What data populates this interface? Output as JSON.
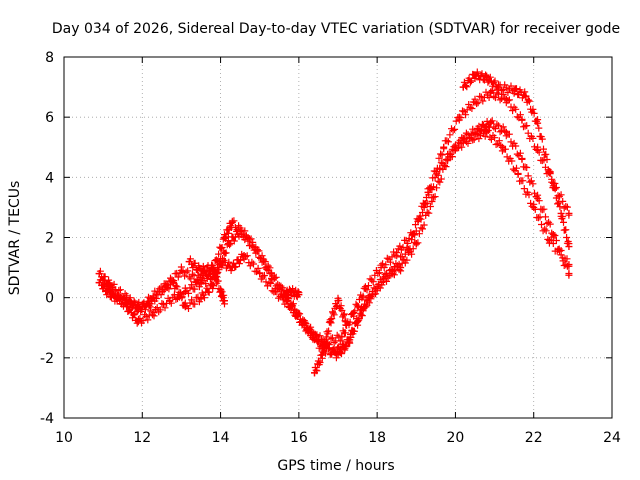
{
  "chart_data": {
    "type": "scatter",
    "title": "Day 034 of 2026, Sidereal Day-to-day VTEC variation (SDTVAR) for receiver gode",
    "xlabel": "GPS time / hours",
    "ylabel": "SDTVAR / TECUs",
    "xlim": [
      10,
      24
    ],
    "ylim": [
      -4,
      8
    ],
    "x_ticks": [
      10,
      12,
      14,
      16,
      18,
      20,
      22,
      24
    ],
    "y_ticks": [
      -4,
      -2,
      0,
      2,
      4,
      6,
      8
    ],
    "grid": true,
    "marker": "+",
    "color": "#ff0000",
    "series": [
      {
        "name": "trace-1",
        "points": [
          [
            10.9,
            0.8
          ],
          [
            11.2,
            0.4
          ],
          [
            11.6,
            0.0
          ],
          [
            11.9,
            -0.4
          ],
          [
            12.2,
            -0.2
          ],
          [
            12.6,
            0.4
          ],
          [
            13.0,
            0.9
          ],
          [
            13.4,
            0.6
          ],
          [
            13.8,
            0.9
          ],
          [
            14.1,
            2.0
          ],
          [
            14.3,
            2.5
          ],
          [
            14.7,
            2.0
          ],
          [
            15.1,
            1.2
          ],
          [
            15.5,
            0.3
          ],
          [
            15.9,
            -0.5
          ],
          [
            16.3,
            -1.2
          ],
          [
            16.7,
            -1.5
          ],
          [
            17.1,
            -1.3
          ],
          [
            17.4,
            -0.5
          ],
          [
            17.7,
            0.3
          ],
          [
            18.1,
            1.0
          ],
          [
            18.5,
            1.5
          ],
          [
            18.9,
            2.1
          ],
          [
            19.3,
            3.5
          ],
          [
            19.7,
            5.0
          ],
          [
            20.1,
            6.0
          ],
          [
            20.5,
            6.5
          ],
          [
            20.9,
            6.8
          ],
          [
            21.3,
            6.6
          ],
          [
            21.7,
            5.9
          ],
          [
            22.1,
            4.9
          ],
          [
            22.5,
            3.8
          ],
          [
            22.9,
            2.8
          ]
        ]
      },
      {
        "name": "trace-2",
        "points": [
          [
            10.9,
            0.5
          ],
          [
            11.2,
            0.2
          ],
          [
            11.6,
            -0.3
          ],
          [
            11.9,
            -0.8
          ],
          [
            12.3,
            -0.5
          ],
          [
            12.7,
            -0.1
          ],
          [
            13.1,
            0.2
          ],
          [
            13.5,
            0.5
          ],
          [
            13.9,
            0.8
          ],
          [
            14.2,
            1.8
          ],
          [
            14.5,
            2.2
          ],
          [
            14.9,
            1.6
          ],
          [
            15.3,
            0.8
          ],
          [
            15.7,
            0.0
          ],
          [
            16.1,
            -0.8
          ],
          [
            16.5,
            -1.4
          ],
          [
            16.9,
            -1.8
          ],
          [
            17.2,
            -1.6
          ],
          [
            17.5,
            -0.8
          ],
          [
            17.8,
            0.0
          ],
          [
            18.2,
            0.7
          ],
          [
            18.6,
            1.0
          ],
          [
            19.0,
            1.8
          ],
          [
            19.4,
            3.2
          ],
          [
            19.8,
            4.6
          ],
          [
            20.2,
            5.3
          ],
          [
            20.6,
            5.6
          ],
          [
            20.9,
            5.8
          ],
          [
            21.3,
            5.5
          ],
          [
            21.7,
            4.6
          ],
          [
            22.1,
            3.3
          ],
          [
            22.5,
            2.1
          ],
          [
            22.9,
            0.8
          ]
        ]
      },
      {
        "name": "trace-3",
        "points": [
          [
            11.0,
            0.3
          ],
          [
            11.3,
            0.0
          ],
          [
            11.7,
            -0.2
          ],
          [
            12.0,
            -0.3
          ],
          [
            12.4,
            0.2
          ],
          [
            12.8,
            0.5
          ],
          [
            13.1,
            -0.3
          ],
          [
            13.5,
            0.0
          ],
          [
            13.8,
            0.4
          ],
          [
            14.0,
            1.2
          ],
          [
            14.3,
            1.0
          ],
          [
            14.6,
            1.4
          ],
          [
            15.0,
            0.8
          ],
          [
            15.4,
            0.2
          ],
          [
            15.8,
            -0.3
          ],
          [
            16.2,
            -1.0
          ],
          [
            16.6,
            -1.7
          ],
          [
            17.0,
            -1.9
          ],
          [
            17.3,
            -1.4
          ],
          [
            17.6,
            -0.4
          ],
          [
            18.0,
            0.3
          ],
          [
            18.4,
            0.9
          ],
          [
            18.8,
            1.6
          ],
          [
            19.2,
            3.0
          ],
          [
            19.6,
            4.3
          ],
          [
            20.0,
            5.0
          ],
          [
            20.4,
            5.3
          ],
          [
            20.8,
            5.5
          ],
          [
            21.2,
            5.0
          ],
          [
            21.6,
            4.1
          ],
          [
            22.0,
            3.0
          ],
          [
            22.4,
            1.9
          ],
          [
            22.9,
            1.1
          ]
        ]
      },
      {
        "name": "trace-4",
        "points": [
          [
            20.2,
            7.0
          ],
          [
            20.5,
            7.4
          ],
          [
            20.8,
            7.3
          ],
          [
            21.1,
            7.0
          ],
          [
            21.5,
            6.9
          ],
          [
            21.8,
            6.7
          ],
          [
            22.1,
            5.8
          ],
          [
            22.4,
            4.2
          ],
          [
            22.7,
            2.8
          ],
          [
            22.9,
            1.7
          ]
        ]
      },
      {
        "name": "trace-5",
        "points": [
          [
            13.2,
            1.2
          ],
          [
            13.5,
            0.9
          ],
          [
            13.8,
            1.0
          ],
          [
            14.0,
            0.2
          ],
          [
            14.1,
            -0.1
          ]
        ]
      },
      {
        "name": "trace-6",
        "points": [
          [
            16.4,
            -2.5
          ],
          [
            16.6,
            -1.9
          ],
          [
            16.8,
            -0.8
          ],
          [
            17.0,
            -0.1
          ],
          [
            17.2,
            -0.8
          ]
        ]
      },
      {
        "name": "trace-7",
        "points": [
          [
            15.6,
            0.1
          ],
          [
            15.8,
            0.2
          ],
          [
            16.0,
            0.1
          ]
        ]
      }
    ]
  }
}
